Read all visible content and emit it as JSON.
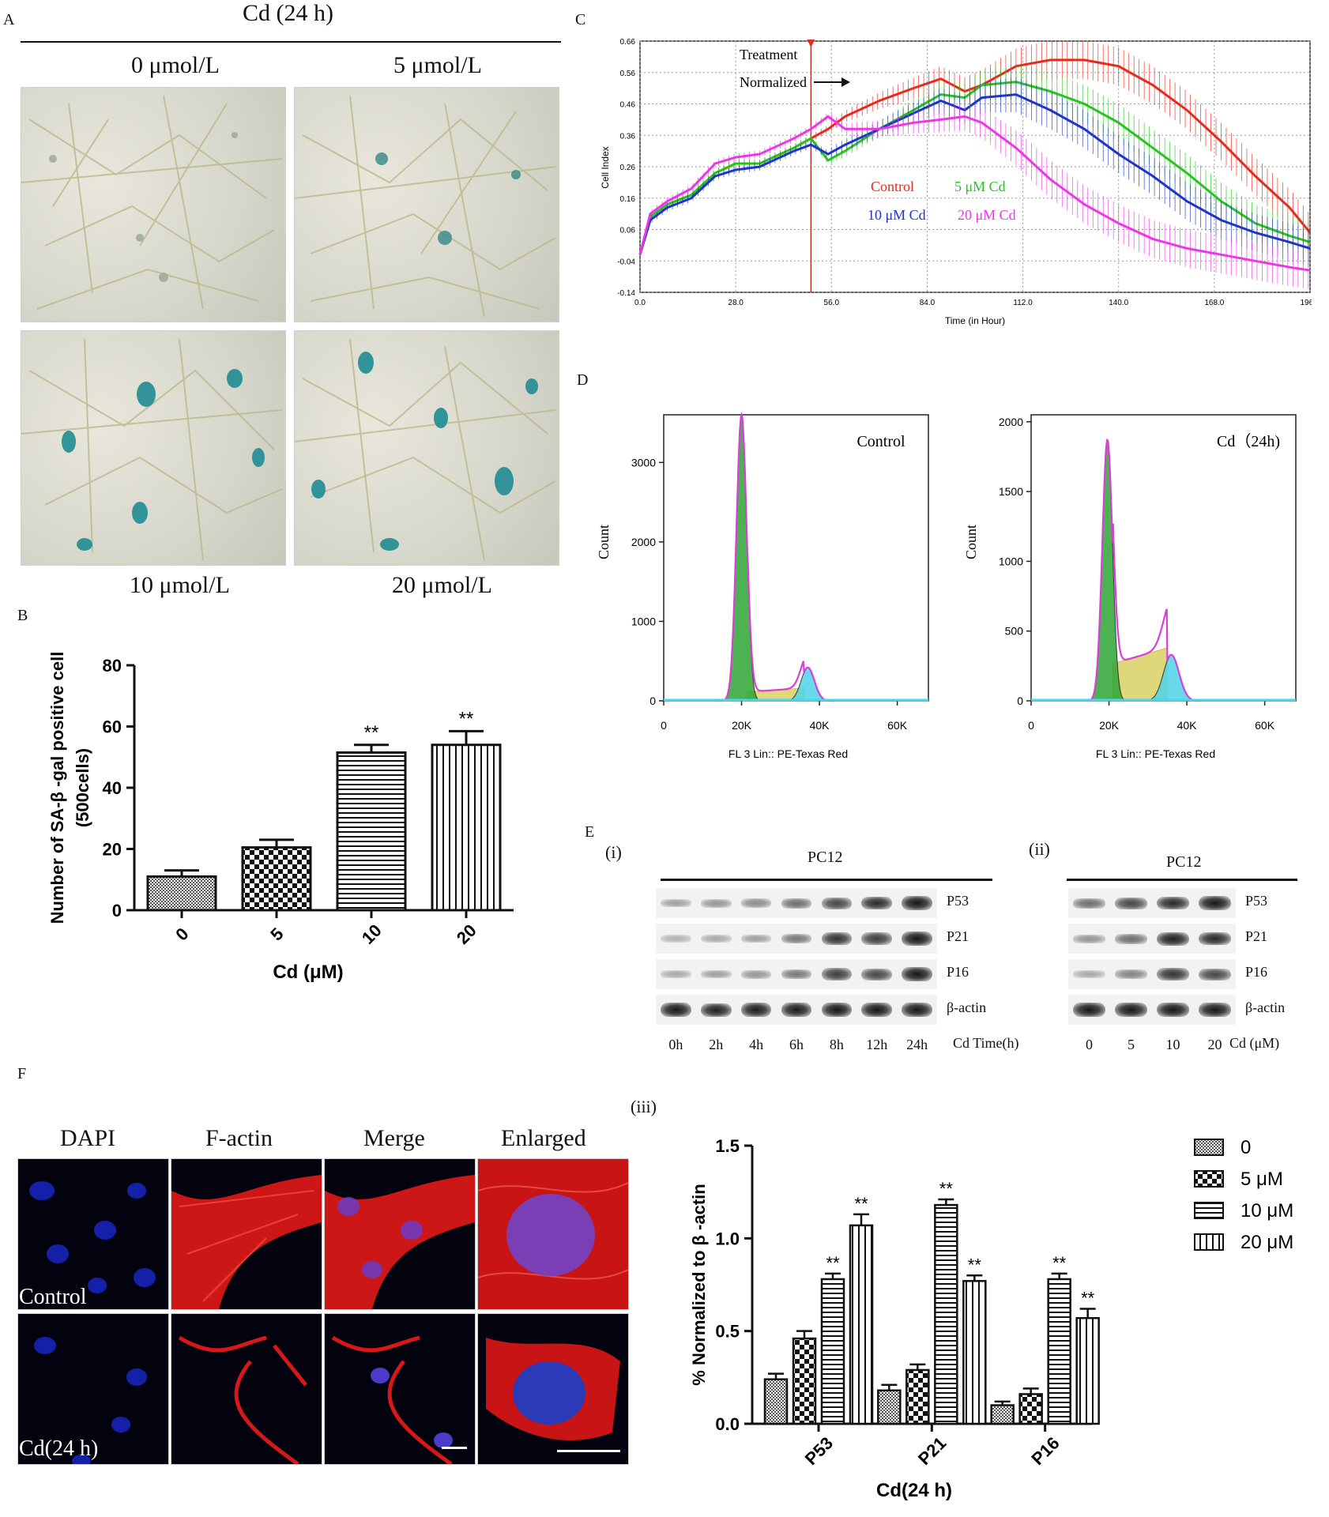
{
  "panel_labels": {
    "A": "A",
    "B": "B",
    "C": "C",
    "D": "D",
    "E": "E",
    "F": "F",
    "E_i": "(i)",
    "E_ii": "(ii)",
    "E_iii": "(iii)"
  },
  "panelA": {
    "heading": "Cd (24 h)",
    "labels": [
      "0 μmol/L",
      "5 μmol/L",
      "10 μmol/L",
      "20 μmol/L"
    ]
  },
  "panelF": {
    "columns": [
      "DAPI",
      "F-actin",
      "Merge",
      "Enlarged"
    ],
    "rows": [
      "Control",
      "Cd(24 h)"
    ]
  },
  "blots": {
    "i": {
      "title": "PC12",
      "proteins": [
        "P53",
        "P21",
        "P16",
        "β-actin"
      ],
      "lanes": [
        "0h",
        "2h",
        "4h",
        "6h",
        "8h",
        "12h",
        "24h"
      ],
      "lane_axis_label": "Cd Time(h)"
    },
    "ii": {
      "title": "PC12",
      "proteins": [
        "P53",
        "P21",
        "P16",
        "β-actin"
      ],
      "lanes": [
        "0",
        "5",
        "10",
        "20"
      ],
      "lane_axis_label": "Cd (μM)"
    }
  },
  "chart_data": [
    {
      "id": "B",
      "type": "bar",
      "categories": [
        "0",
        "5",
        "10",
        "20"
      ],
      "values": [
        11,
        20.5,
        51.5,
        54
      ],
      "errors": [
        2,
        2.5,
        2.5,
        4.5
      ],
      "significance": [
        "",
        "",
        "**",
        "**"
      ],
      "ylabel_line1": "Number of SA-β -gal positive cell",
      "ylabel_line2": "(500cells)",
      "xlabel": "Cd (μM)",
      "ylim": [
        0,
        80
      ],
      "yticks": [
        0,
        20,
        40,
        60,
        80
      ],
      "grid": false
    },
    {
      "id": "C",
      "type": "line",
      "xlabel": "Time (in Hour)",
      "ylabel": "Cell Index",
      "xlim": [
        0,
        196
      ],
      "ylim": [
        -0.14,
        0.66
      ],
      "xticks": [
        "0.0",
        "28.0",
        "56.0",
        "84.0",
        "112.0",
        "140.0",
        "168.0",
        "196.0"
      ],
      "yticks": [
        "0.66",
        "0.56",
        "0.46",
        "0.36",
        "0.26",
        "0.16",
        "0.06",
        "-0.04",
        "-0.14"
      ],
      "grid": true,
      "annotations": [
        "Treatment",
        "Normalized"
      ],
      "treatment_x": 50,
      "series": [
        {
          "name": "Control",
          "color": "#e8291c",
          "x": [
            0,
            3,
            8,
            15,
            22,
            28,
            35,
            45,
            50,
            55,
            60,
            70,
            80,
            88,
            95,
            100,
            110,
            120,
            130,
            140,
            150,
            160,
            170,
            180,
            190,
            196
          ],
          "y": [
            -0.02,
            0.1,
            0.14,
            0.17,
            0.24,
            0.27,
            0.27,
            0.32,
            0.35,
            0.38,
            0.42,
            0.47,
            0.51,
            0.54,
            0.5,
            0.52,
            0.58,
            0.6,
            0.6,
            0.58,
            0.52,
            0.44,
            0.34,
            0.23,
            0.13,
            0.05
          ]
        },
        {
          "name": "5 μM Cd",
          "color": "#27c41f",
          "x": [
            0,
            3,
            8,
            15,
            22,
            28,
            35,
            45,
            50,
            55,
            60,
            70,
            80,
            88,
            95,
            100,
            110,
            120,
            130,
            140,
            150,
            160,
            170,
            180,
            190,
            196
          ],
          "y": [
            -0.02,
            0.1,
            0.14,
            0.17,
            0.24,
            0.27,
            0.27,
            0.32,
            0.35,
            0.28,
            0.31,
            0.38,
            0.44,
            0.49,
            0.48,
            0.52,
            0.53,
            0.5,
            0.46,
            0.4,
            0.32,
            0.24,
            0.15,
            0.08,
            0.04,
            0.02
          ]
        },
        {
          "name": "10 μM Cd",
          "color": "#1f34c8",
          "x": [
            0,
            3,
            8,
            15,
            22,
            28,
            35,
            45,
            50,
            55,
            60,
            70,
            80,
            88,
            95,
            100,
            110,
            120,
            130,
            140,
            150,
            160,
            170,
            180,
            190,
            196
          ],
          "y": [
            -0.02,
            0.09,
            0.13,
            0.16,
            0.23,
            0.25,
            0.26,
            0.31,
            0.33,
            0.3,
            0.33,
            0.38,
            0.43,
            0.47,
            0.44,
            0.48,
            0.49,
            0.44,
            0.38,
            0.3,
            0.23,
            0.15,
            0.09,
            0.05,
            0.02,
            0.0
          ]
        },
        {
          "name": "20 μM Cd",
          "color": "#ea38e6",
          "x": [
            0,
            3,
            8,
            15,
            22,
            28,
            35,
            45,
            50,
            55,
            60,
            70,
            80,
            88,
            95,
            100,
            110,
            120,
            130,
            140,
            150,
            160,
            170,
            180,
            190,
            196
          ],
          "y": [
            -0.02,
            0.11,
            0.15,
            0.19,
            0.27,
            0.29,
            0.3,
            0.35,
            0.38,
            0.42,
            0.38,
            0.38,
            0.4,
            0.41,
            0.42,
            0.4,
            0.32,
            0.22,
            0.14,
            0.08,
            0.03,
            0.0,
            -0.02,
            -0.04,
            -0.06,
            -0.07
          ]
        }
      ]
    },
    {
      "id": "D_control",
      "type": "area",
      "title": "Control",
      "xlabel": "FL 3 Lin:: PE-Texas Red",
      "ylabel": "Count",
      "xlim": [
        0,
        68000
      ],
      "ylim": [
        0,
        3600
      ],
      "xticks": [
        "0",
        "20K",
        "40K",
        "60K"
      ],
      "xtick_values": [
        0,
        20000,
        40000,
        60000
      ],
      "yticks": [
        0,
        1000,
        2000,
        3000
      ],
      "components": [
        {
          "name": "G1",
          "color": "#2fa534",
          "center": 20000,
          "height": 3600,
          "width": 1300
        },
        {
          "name": "S",
          "color": "#d6cf5a",
          "from": 21500,
          "to": 36000,
          "height": 160
        },
        {
          "name": "G2",
          "color": "#4fd4e8",
          "center": 37000,
          "height": 420,
          "width": 1700
        }
      ]
    },
    {
      "id": "D_cd",
      "type": "area",
      "title": "Cd（24h)",
      "xlabel": "FL 3 Lin:: PE-Texas Red",
      "ylabel": "Count",
      "xlim": [
        0,
        68000
      ],
      "ylim": [
        0,
        2050
      ],
      "xticks": [
        "0",
        "20K",
        "40K",
        "60K"
      ],
      "xtick_values": [
        0,
        20000,
        40000,
        60000
      ],
      "yticks": [
        0,
        500,
        1000,
        1500,
        2000
      ],
      "components": [
        {
          "name": "G1",
          "color": "#2fa534",
          "center": 19600,
          "height": 1870,
          "width": 1300
        },
        {
          "name": "S",
          "color": "#d6cf5a",
          "from": 21000,
          "to": 35000,
          "height": 380
        },
        {
          "name": "G2",
          "color": "#4fd4e8",
          "center": 36000,
          "height": 330,
          "width": 2000
        }
      ]
    },
    {
      "id": "E_iii",
      "type": "bar",
      "categories": [
        "P53",
        "P21",
        "P16"
      ],
      "series": [
        {
          "name": "0",
          "values": [
            0.24,
            0.18,
            0.1
          ],
          "errors": [
            0.03,
            0.03,
            0.02
          ]
        },
        {
          "name": "5 μM",
          "values": [
            0.46,
            0.29,
            0.16
          ],
          "errors": [
            0.04,
            0.03,
            0.03
          ]
        },
        {
          "name": "10 μM",
          "values": [
            0.78,
            1.18,
            0.78
          ],
          "errors": [
            0.03,
            0.03,
            0.03
          ]
        },
        {
          "name": "20 μM",
          "values": [
            1.07,
            0.77,
            0.57
          ],
          "errors": [
            0.06,
            0.03,
            0.05
          ]
        }
      ],
      "significance": [
        [
          "",
          "",
          "**",
          "**"
        ],
        [
          "",
          "",
          "**",
          "**"
        ],
        [
          "",
          "",
          "**",
          "**"
        ]
      ],
      "ylabel": "% Normalized to β -actin",
      "xlabel": "Cd(24 h)",
      "ylim": [
        0,
        1.5
      ],
      "yticks": [
        "0.0",
        "0.5",
        "1.0",
        "1.5"
      ],
      "legend_position": "top-right",
      "grid": false
    }
  ]
}
